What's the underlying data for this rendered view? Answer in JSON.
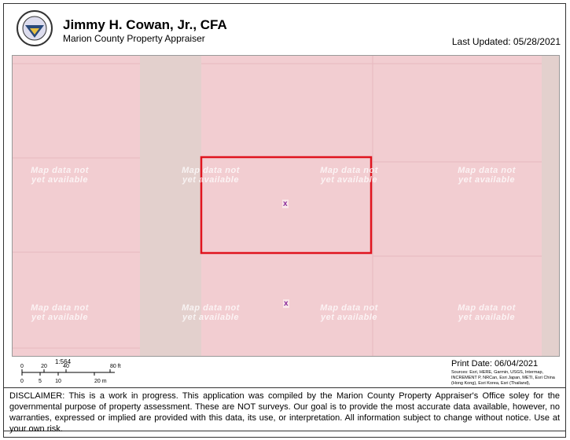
{
  "header": {
    "title": "Jimmy H. Cowan, Jr., CFA",
    "subtitle": "Marion County Property Appraiser",
    "last_updated": "Last Updated: 05/28/2021"
  },
  "map": {
    "watermark": "Map data not yet available",
    "marker": "x"
  },
  "scale": {
    "ratio": "1:564",
    "ft_ticks": [
      0,
      20,
      40,
      {
        "value": 80,
        "label": "80 ft"
      }
    ],
    "m_ticks": [
      0,
      5,
      10,
      {
        "value": 20,
        "label": "20 m"
      }
    ]
  },
  "print_date": "Print Date: 06/04/2021",
  "sources": "Sources: Esri, HERE, Garmin, USGS, Intermap, INCREMENT P, NRCan, Esri Japan, METI, Esri China (Hong Kong), Esri Korea, Esri (Thailand),",
  "disclaimer": "DISCLAIMER: This is a work in progress. This application was compiled by the Marion County Property Appraiser's Office soley for the governmental purpose of property assessment. These are NOT surveys. Our goal is to provide the most accurate data available, however, no warranties, expressed or implied are provided with this data, its use, or interpretation. All information subject to change without notice. Use at your own risk."
}
